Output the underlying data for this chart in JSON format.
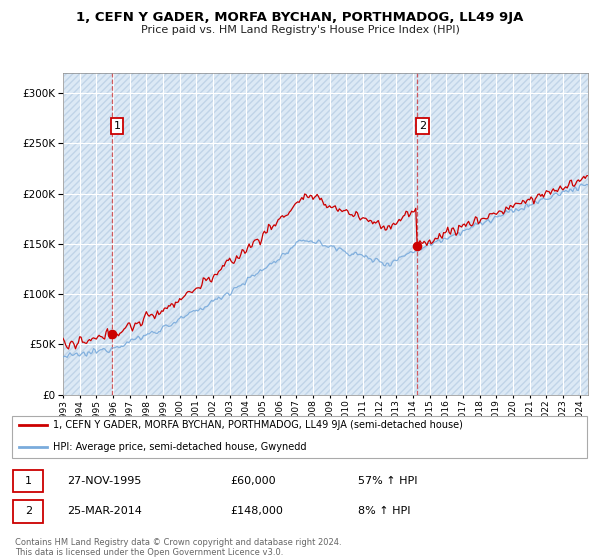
{
  "title": "1, CEFN Y GADER, MORFA BYCHAN, PORTHMADOG, LL49 9JA",
  "subtitle": "Price paid vs. HM Land Registry's House Price Index (HPI)",
  "legend_line1": "1, CEFN Y GADER, MORFA BYCHAN, PORTHMADOG, LL49 9JA (semi-detached house)",
  "legend_line2": "HPI: Average price, semi-detached house, Gwynedd",
  "annotation1_date": "27-NOV-1995",
  "annotation1_price": "£60,000",
  "annotation1_hpi": "57% ↑ HPI",
  "annotation2_date": "25-MAR-2014",
  "annotation2_price": "£148,000",
  "annotation2_hpi": "8% ↑ HPI",
  "footer1": "Contains HM Land Registry data © Crown copyright and database right 2024.",
  "footer2": "This data is licensed under the Open Government Licence v3.0.",
  "red_color": "#cc0000",
  "blue_color": "#7aabdc",
  "bg_color": "#dce9f5",
  "hatch_color": "#c0d4e8",
  "grid_color": "#ffffff",
  "sale1_year": 1995.92,
  "sale1_value": 60000,
  "sale2_year": 2014.23,
  "sale2_value": 148000,
  "ylim_max": 320000,
  "xstart": 1993.0,
  "xend": 2024.5
}
